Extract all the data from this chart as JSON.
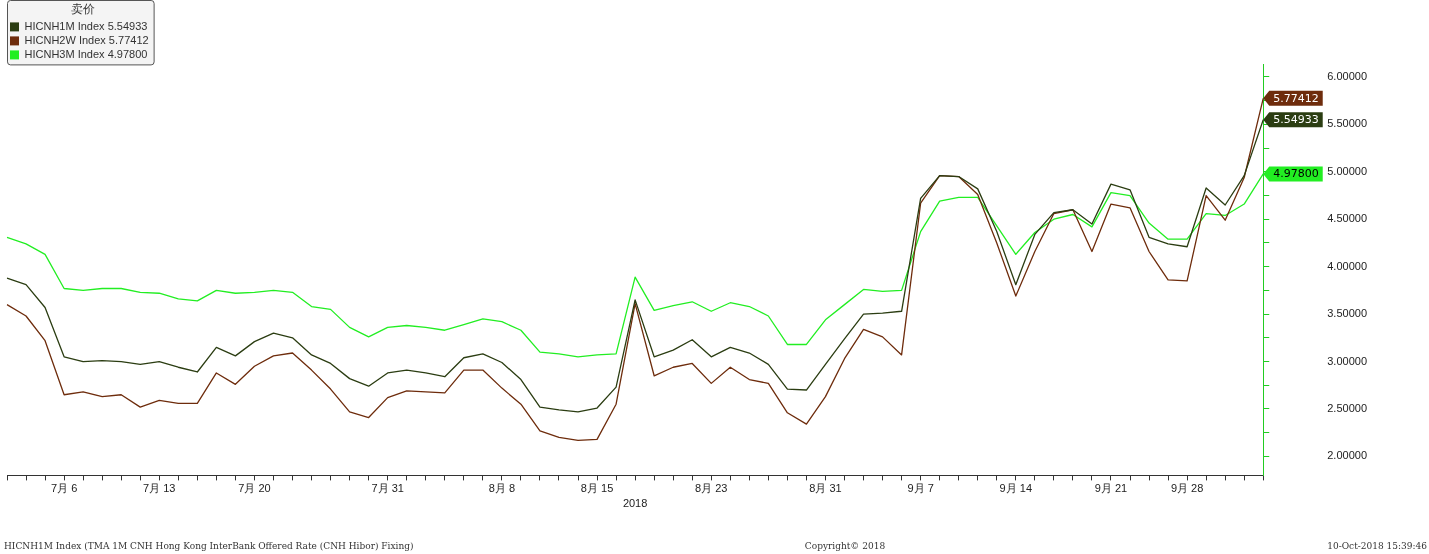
{
  "chart_data": {
    "type": "line",
    "legend_title": "卖价",
    "xlabel": "2018",
    "categories": [
      null,
      null,
      null,
      "7月 6",
      null,
      null,
      null,
      null,
      "7月 13",
      null,
      null,
      null,
      null,
      "7月 20",
      null,
      null,
      null,
      null,
      null,
      null,
      "7月 31",
      null,
      null,
      null,
      null,
      null,
      "8月 8",
      null,
      null,
      null,
      null,
      "8月 15",
      null,
      null,
      null,
      null,
      null,
      "8月 23",
      null,
      null,
      null,
      null,
      null,
      "8月 31",
      null,
      null,
      null,
      null,
      "9月 7",
      null,
      null,
      null,
      null,
      "9月 14",
      null,
      null,
      null,
      null,
      "9月 21",
      null,
      null,
      null,
      "9月 28",
      null,
      null,
      null,
      null
    ],
    "series": [
      {
        "name": "HICNH1M Index 5.54933",
        "color": "#2b3d12",
        "values": [
          3.88,
          3.81,
          3.57,
          3.05,
          3.0,
          3.01,
          3.0,
          2.97,
          3.0,
          2.94,
          2.89,
          3.15,
          3.06,
          3.21,
          3.3,
          3.25,
          3.07,
          2.98,
          2.82,
          2.74,
          2.88,
          2.91,
          2.88,
          2.84,
          3.04,
          3.08,
          2.99,
          2.81,
          2.52,
          2.49,
          2.47,
          2.51,
          2.73,
          3.65,
          3.05,
          3.12,
          3.23,
          3.05,
          3.15,
          3.09,
          2.97,
          2.71,
          2.7,
          2.97,
          3.24,
          3.5,
          3.51,
          3.53,
          4.72,
          4.96,
          4.95,
          4.82,
          4.37,
          3.81,
          4.34,
          4.57,
          4.6,
          4.45,
          4.87,
          4.81,
          4.31,
          4.24,
          4.21,
          4.83,
          4.65,
          4.96,
          5.54933
        ],
        "value_labels": [
          null,
          null,
          null,
          null,
          null,
          null,
          null,
          null,
          null,
          null,
          null,
          null,
          null,
          null,
          null,
          null,
          null,
          null,
          null,
          null,
          null,
          null,
          null,
          null,
          null,
          null,
          null,
          null,
          null,
          null,
          null,
          null,
          null,
          null,
          null,
          null,
          null,
          null,
          null,
          null,
          null,
          null,
          null,
          null,
          null,
          null,
          null,
          null,
          null,
          null,
          null,
          null,
          null,
          null,
          null,
          null,
          null,
          null,
          null,
          null,
          null,
          null,
          null,
          null,
          null,
          null,
          "5.54933"
        ]
      },
      {
        "name": "HICNH2W Index 5.77412",
        "color": "#6e2c0c",
        "values": [
          3.6,
          3.48,
          3.22,
          2.65,
          2.68,
          2.63,
          2.65,
          2.52,
          2.59,
          2.56,
          2.56,
          2.88,
          2.76,
          2.95,
          3.06,
          3.09,
          2.91,
          2.71,
          2.47,
          2.41,
          2.62,
          2.69,
          2.68,
          2.67,
          2.91,
          2.91,
          2.72,
          2.55,
          2.27,
          2.2,
          2.17,
          2.18,
          2.55,
          3.61,
          2.85,
          2.94,
          2.98,
          2.77,
          2.94,
          2.81,
          2.77,
          2.46,
          2.34,
          2.63,
          3.03,
          3.34,
          3.26,
          3.07,
          4.67,
          4.96,
          4.95,
          4.76,
          4.25,
          3.69,
          4.16,
          4.56,
          4.6,
          4.16,
          4.66,
          4.62,
          4.16,
          3.86,
          3.85,
          4.75,
          4.49,
          4.94,
          5.77412
        ],
        "value_labels": [
          null,
          null,
          null,
          null,
          null,
          null,
          null,
          null,
          null,
          null,
          null,
          null,
          null,
          null,
          null,
          null,
          null,
          null,
          null,
          null,
          null,
          null,
          null,
          null,
          null,
          null,
          null,
          null,
          null,
          null,
          null,
          null,
          null,
          null,
          null,
          null,
          null,
          null,
          null,
          null,
          null,
          null,
          null,
          null,
          null,
          null,
          null,
          null,
          null,
          null,
          null,
          null,
          null,
          null,
          null,
          null,
          null,
          null,
          null,
          null,
          null,
          null,
          null,
          null,
          null,
          null,
          "5.77412"
        ]
      },
      {
        "name": "HICNH3M Index 4.97800",
        "color": "#22ee22",
        "values": [
          4.31,
          4.24,
          4.13,
          3.77,
          3.75,
          3.77,
          3.77,
          3.73,
          3.72,
          3.66,
          3.64,
          3.75,
          3.72,
          3.73,
          3.75,
          3.73,
          3.58,
          3.55,
          3.36,
          3.26,
          3.36,
          3.38,
          3.36,
          3.33,
          3.39,
          3.45,
          3.42,
          3.33,
          3.1,
          3.08,
          3.05,
          3.07,
          3.08,
          3.89,
          3.54,
          3.59,
          3.63,
          3.53,
          3.62,
          3.58,
          3.48,
          3.18,
          3.18,
          3.44,
          3.6,
          3.76,
          3.74,
          3.75,
          4.37,
          4.69,
          4.73,
          4.73,
          4.43,
          4.13,
          4.36,
          4.5,
          4.55,
          4.42,
          4.78,
          4.75,
          4.46,
          4.29,
          4.29,
          4.56,
          4.54,
          4.66,
          4.978
        ],
        "value_labels": [
          null,
          null,
          null,
          null,
          null,
          null,
          null,
          null,
          null,
          null,
          null,
          null,
          null,
          null,
          null,
          null,
          null,
          null,
          null,
          null,
          null,
          null,
          null,
          null,
          null,
          null,
          null,
          null,
          null,
          null,
          null,
          null,
          null,
          null,
          null,
          null,
          null,
          null,
          null,
          null,
          null,
          null,
          null,
          null,
          null,
          null,
          null,
          null,
          null,
          null,
          null,
          null,
          null,
          null,
          null,
          null,
          null,
          null,
          null,
          null,
          null,
          null,
          null,
          null,
          null,
          null,
          "4.97800"
        ]
      }
    ],
    "ylim": [
      1.8,
      6.13
    ],
    "yticks": [
      {
        "value": 2,
        "label": "2.00000"
      },
      {
        "value": 2.25,
        "label": null
      },
      {
        "value": 2.5,
        "label": "2.50000"
      },
      {
        "value": 2.75,
        "label": null
      },
      {
        "value": 3,
        "label": "3.00000"
      },
      {
        "value": 3.25,
        "label": null
      },
      {
        "value": 3.5,
        "label": "3.50000"
      },
      {
        "value": 3.75,
        "label": null
      },
      {
        "value": 4,
        "label": "4.00000"
      },
      {
        "value": 4.25,
        "label": null
      },
      {
        "value": 4.5,
        "label": "4.50000"
      },
      {
        "value": 4.75,
        "label": null
      },
      {
        "value": 5,
        "label": "5.00000"
      },
      {
        "value": 5.25,
        "label": null
      },
      {
        "value": 5.5,
        "label": "5.50000"
      },
      {
        "value": 5.75,
        "label": null
      },
      {
        "value": 6,
        "label": "6.00000"
      }
    ],
    "grid": false,
    "legend": "top left",
    "marker": "none",
    "annotations": [
      "HICNH1M Index (TMA 1M CNH Hong Kong InterBank Offered Rate (CNH Hibor) Fixing)",
      "Copyright© 2018",
      "10-Oct-2018 15:39:46"
    ]
  }
}
